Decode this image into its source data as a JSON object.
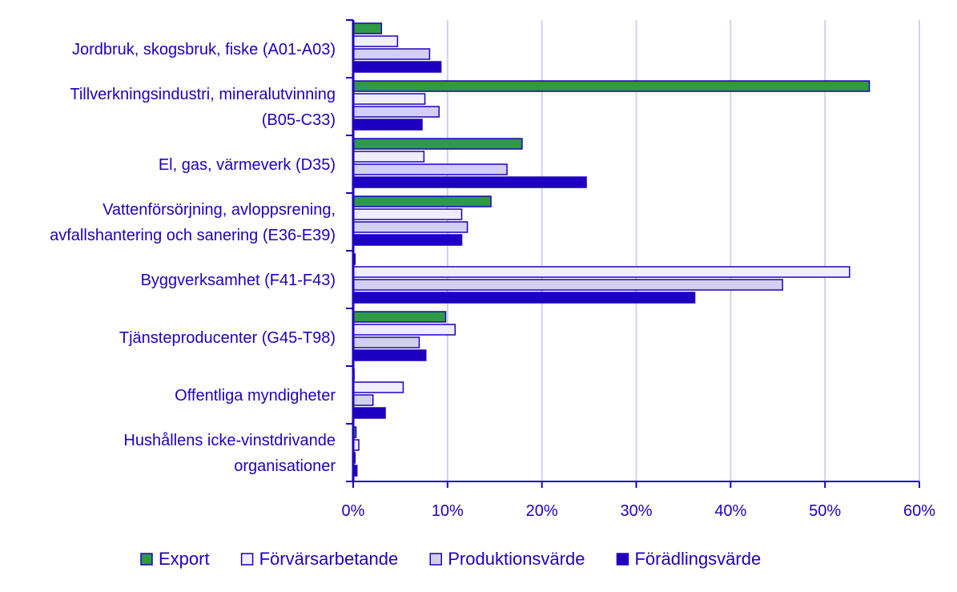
{
  "chart_data": {
    "type": "bar",
    "orientation": "horizontal",
    "title": "",
    "xlabel": "",
    "ylabel": "",
    "xlim": [
      0,
      60
    ],
    "x_ticks": [
      "0%",
      "10%",
      "20%",
      "30%",
      "40%",
      "50%",
      "60%"
    ],
    "grid": true,
    "legend_position": "bottom",
    "categories": [
      [
        "Jordbruk, skogsbruk, fiske (A01-A03)"
      ],
      [
        "Tillverkningsindustri, mineralutvinning",
        "(B05-C33)"
      ],
      [
        "El, gas, värmeverk (D35)"
      ],
      [
        "Vattenförsörjning, avloppsrening,",
        "avfallshantering och sanering (E36-E39)"
      ],
      [
        "Byggverksamhet (F41-F43)"
      ],
      [
        "Tjänsteproducenter (G45-T98)"
      ],
      [
        "Offentliga myndigheter"
      ],
      [
        "Hushållens icke-vinstdrivande",
        "organisationer"
      ]
    ],
    "series": [
      {
        "name": "Export",
        "color": "#2e9a45",
        "values": [
          3.0,
          54.7,
          17.9,
          14.6,
          0.2,
          9.8,
          0.1,
          0.3
        ]
      },
      {
        "name": "Förvärsarbetande",
        "color": "#eeeeff",
        "values": [
          4.7,
          7.6,
          7.5,
          11.5,
          52.6,
          10.8,
          5.3,
          0.6
        ]
      },
      {
        "name": "Produktionsvärde",
        "color": "#d2cff0",
        "values": [
          8.1,
          9.1,
          16.3,
          12.1,
          45.5,
          7.0,
          2.1,
          0.2
        ]
      },
      {
        "name": "Förädlingsvärde",
        "color": "#1e00c0",
        "values": [
          9.3,
          7.3,
          24.7,
          11.5,
          36.2,
          7.7,
          3.4,
          0.4
        ]
      }
    ],
    "text_color": "#1e00be",
    "grid_color": "#d2d0f0"
  }
}
